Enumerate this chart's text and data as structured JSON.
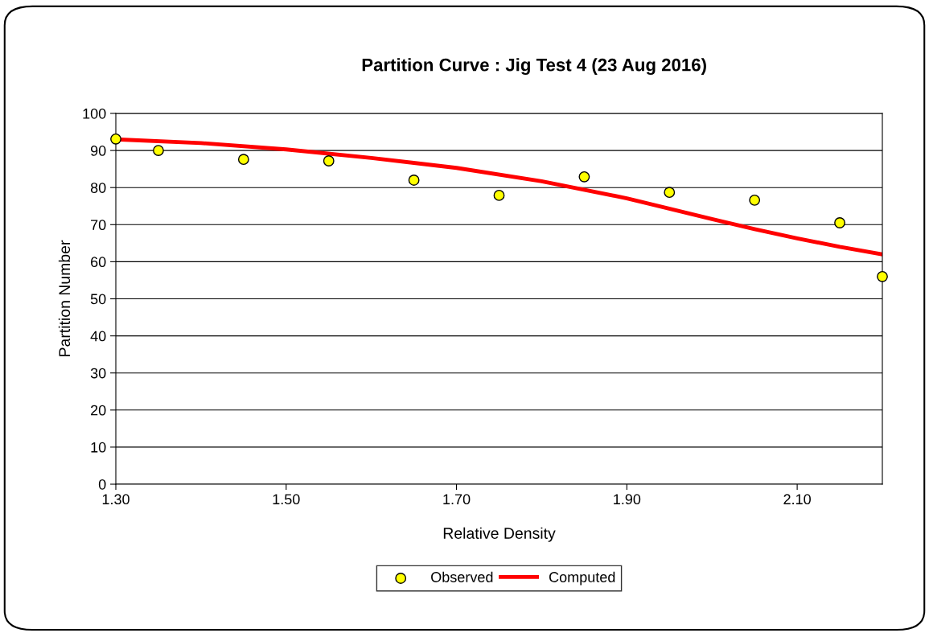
{
  "chart_data": {
    "type": "scatter",
    "title": "Partition Curve : Jig Test 4 (23 Aug 2016)",
    "xlabel": "Relative Density",
    "ylabel": "Partition Number",
    "xlim": [
      1.3,
      2.2
    ],
    "xticks": [
      {
        "value": 1.3,
        "label": "1.30"
      },
      {
        "value": 1.5,
        "label": "1.50"
      },
      {
        "value": 1.7,
        "label": "1.70"
      },
      {
        "value": 1.9,
        "label": "1.90"
      },
      {
        "value": 2.1,
        "label": "2.10"
      }
    ],
    "ylim": [
      0,
      100
    ],
    "yticks": [
      0,
      10,
      20,
      30,
      40,
      50,
      60,
      70,
      80,
      90,
      100
    ],
    "grid": "y",
    "legend": "bottom",
    "series": [
      {
        "name": "Observed",
        "marker": "circle",
        "color": "#ffff00",
        "x": [
          1.3,
          1.35,
          1.45,
          1.55,
          1.65,
          1.75,
          1.85,
          1.95,
          2.05,
          2.15,
          2.2
        ],
        "values": [
          93.1,
          90.0,
          87.6,
          87.2,
          82.0,
          77.9,
          82.9,
          78.7,
          76.6,
          70.5,
          56.0
        ]
      },
      {
        "name": "Computed",
        "type": "line",
        "marker": "none",
        "color": "#ff0000",
        "x": [
          1.3,
          1.4,
          1.5,
          1.6,
          1.7,
          1.8,
          1.9,
          2.0,
          2.05,
          2.1,
          2.15,
          2.2
        ],
        "values": [
          93.0,
          92.0,
          90.3,
          88.0,
          85.3,
          81.7,
          77.1,
          71.5,
          68.8,
          66.3,
          64.0,
          62.0
        ]
      }
    ]
  }
}
